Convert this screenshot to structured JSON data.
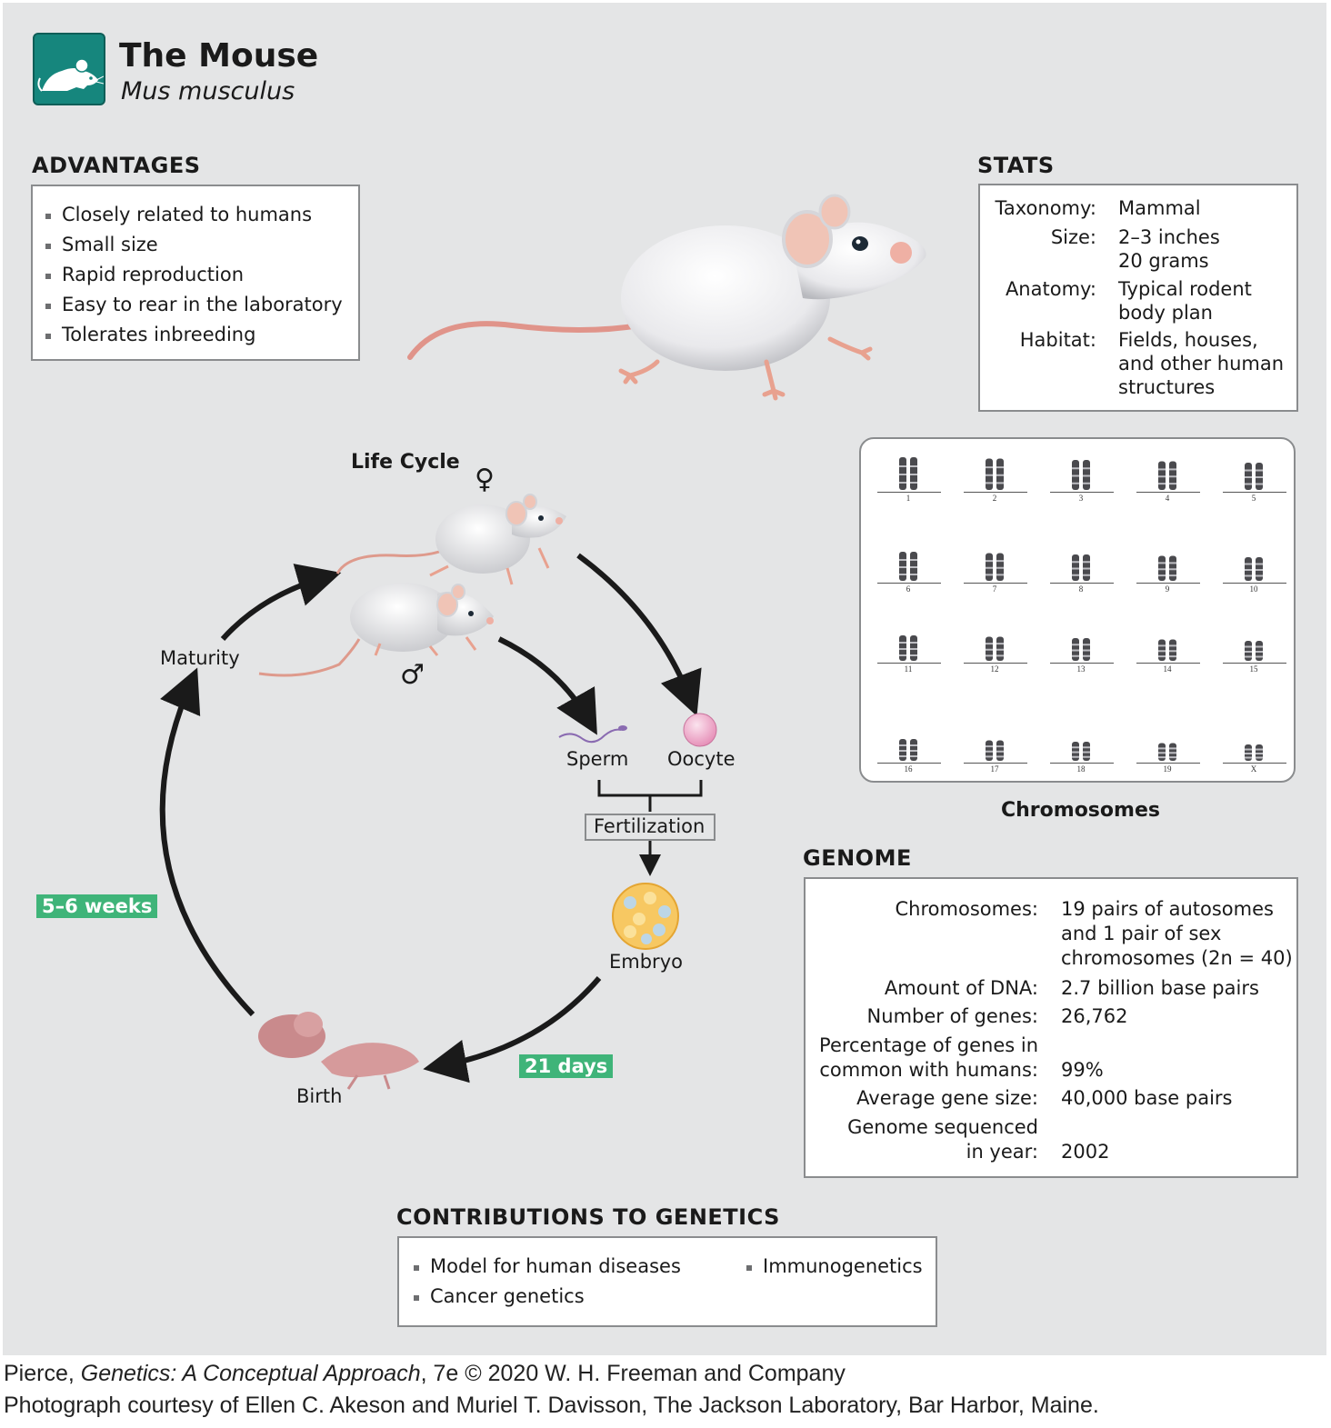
{
  "header": {
    "title": "The Mouse",
    "subtitle": "Mus musculus",
    "logo_icon": "mouse-icon"
  },
  "advantages": {
    "heading": "ADVANTAGES",
    "items": [
      "Closely related to humans",
      "Small size",
      "Rapid reproduction",
      "Easy to rear in the laboratory",
      "Tolerates inbreeding"
    ]
  },
  "stats": {
    "heading": "STATS",
    "rows": [
      {
        "label": "Taxonomy:",
        "value": [
          "Mammal"
        ]
      },
      {
        "label": "Size:",
        "value": [
          "2–3 inches",
          "20 grams"
        ]
      },
      {
        "label": "Anatomy:",
        "value": [
          "Typical rodent",
          "body plan"
        ]
      },
      {
        "label": "Habitat:",
        "value": [
          "Fields, houses,",
          "and other human",
          "structures"
        ]
      }
    ]
  },
  "karyotype": {
    "caption": "Chromosomes",
    "labels": [
      "1",
      "2",
      "3",
      "4",
      "5",
      "6",
      "7",
      "8",
      "9",
      "10",
      "11",
      "12",
      "13",
      "14",
      "15",
      "16",
      "17",
      "18",
      "19",
      "X"
    ]
  },
  "life_cycle": {
    "title": "Life Cycle",
    "female_symbol": "♀",
    "male_symbol": "♂",
    "maturity": "Maturity",
    "sperm": "Sperm",
    "oocyte": "Oocyte",
    "fertilization": "Fertilization",
    "embryo": "Embryo",
    "birth": "Birth",
    "maturation_time": "5–6 weeks",
    "gestation_time": "21 days"
  },
  "genome": {
    "heading": "GENOME",
    "rows": [
      {
        "label": [
          "Chromosomes:"
        ],
        "value": [
          "19 pairs of autosomes",
          "and 1 pair of sex",
          "chromosomes (2n = 40)"
        ]
      },
      {
        "label": [
          "Amount of DNA:"
        ],
        "value": [
          "2.7 billion base pairs"
        ]
      },
      {
        "label": [
          "Number of genes:"
        ],
        "value": [
          "26,762"
        ]
      },
      {
        "label": [
          "Percentage of genes in",
          "common with humans:"
        ],
        "value": [
          "99%"
        ]
      },
      {
        "label": [
          "Average gene size:"
        ],
        "value": [
          "40,000 base pairs"
        ]
      },
      {
        "label": [
          "Genome sequenced",
          "in year:"
        ],
        "value": [
          "2002"
        ]
      }
    ]
  },
  "contributions": {
    "heading": "CONTRIBUTIONS TO GENETICS",
    "items": [
      "Model for human diseases",
      "Cancer genetics",
      "Immunogenetics"
    ]
  },
  "footer": {
    "line1_author": "Pierce, ",
    "line1_title": "Genetics: A Conceptual Approach",
    "line1_rest": ", 7e © 2020 W. H. Freeman and Company",
    "line2": "Photograph courtesy of Ellen C. Akeson and Muriel T. Davisson, The Jackson Laboratory, Bar Harbor, Maine."
  },
  "colors": {
    "panel_bg": "#e4e5e6",
    "teal": "#16867d",
    "green_tag": "#3fb479",
    "border": "#8a8c8e"
  }
}
